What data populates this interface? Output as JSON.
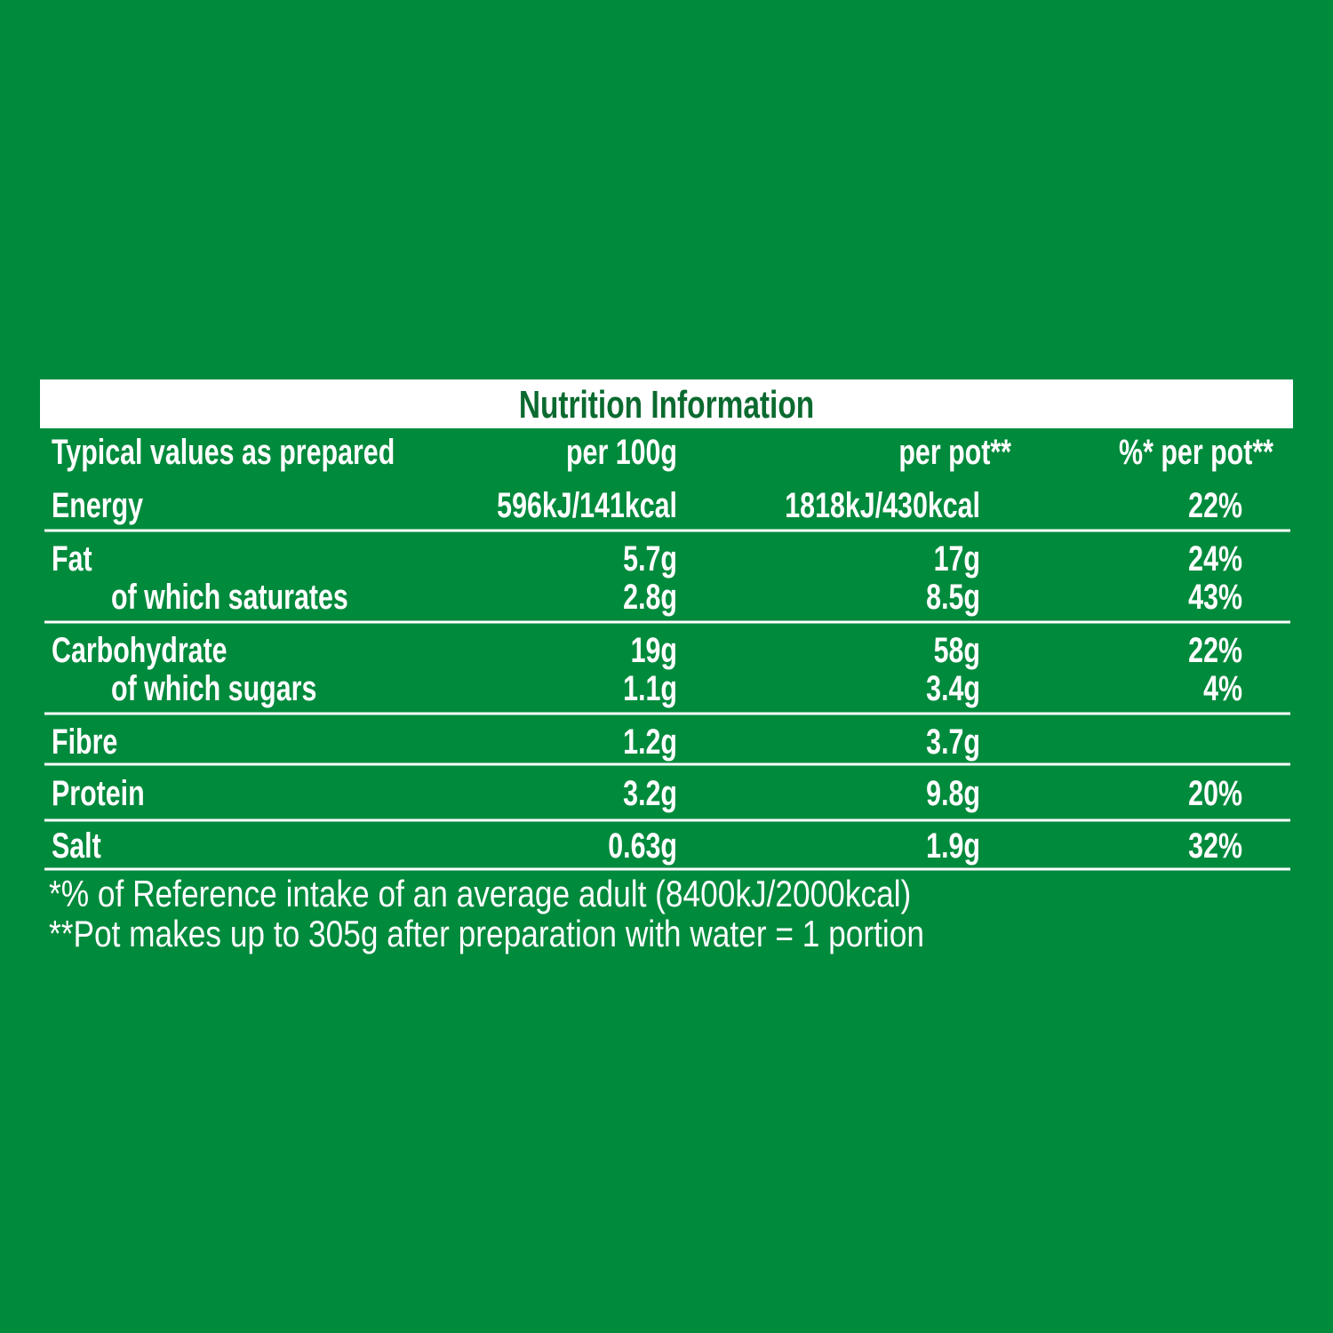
{
  "title": "Nutrition Information",
  "table": {
    "header": [
      "Typical values as prepared",
      "per 100g",
      "per pot**",
      "%* per pot**"
    ],
    "rows": [
      {
        "label": "Energy",
        "cells": [
          "596kJ/141kcal",
          "1818kJ/430kcal",
          "22%"
        ]
      },
      {
        "label": "Fat",
        "cells": [
          "5.7g",
          "17g",
          "24%"
        ]
      },
      {
        "label": "of which saturates",
        "cells": [
          "2.8g",
          "8.5g",
          "43%"
        ]
      },
      {
        "label": "Carbohydrate",
        "cells": [
          "19g",
          "58g",
          "22%"
        ]
      },
      {
        "label": "of which sugars",
        "cells": [
          "1.1g",
          "3.4g",
          "4%"
        ]
      },
      {
        "label": "Fibre",
        "cells": [
          "1.2g",
          "3.7g"
        ]
      },
      {
        "label": "Protein",
        "cells": [
          "3.2g",
          "9.8g",
          "20%"
        ]
      },
      {
        "label": "Salt",
        "cells": [
          "0.63g",
          "1.9g",
          "32%"
        ]
      }
    ]
  },
  "footnotes": [
    "*% of Reference intake of an average adult (8400kJ/2000kcal)",
    "**Pot makes up to 305g after preparation with water = 1 portion"
  ]
}
